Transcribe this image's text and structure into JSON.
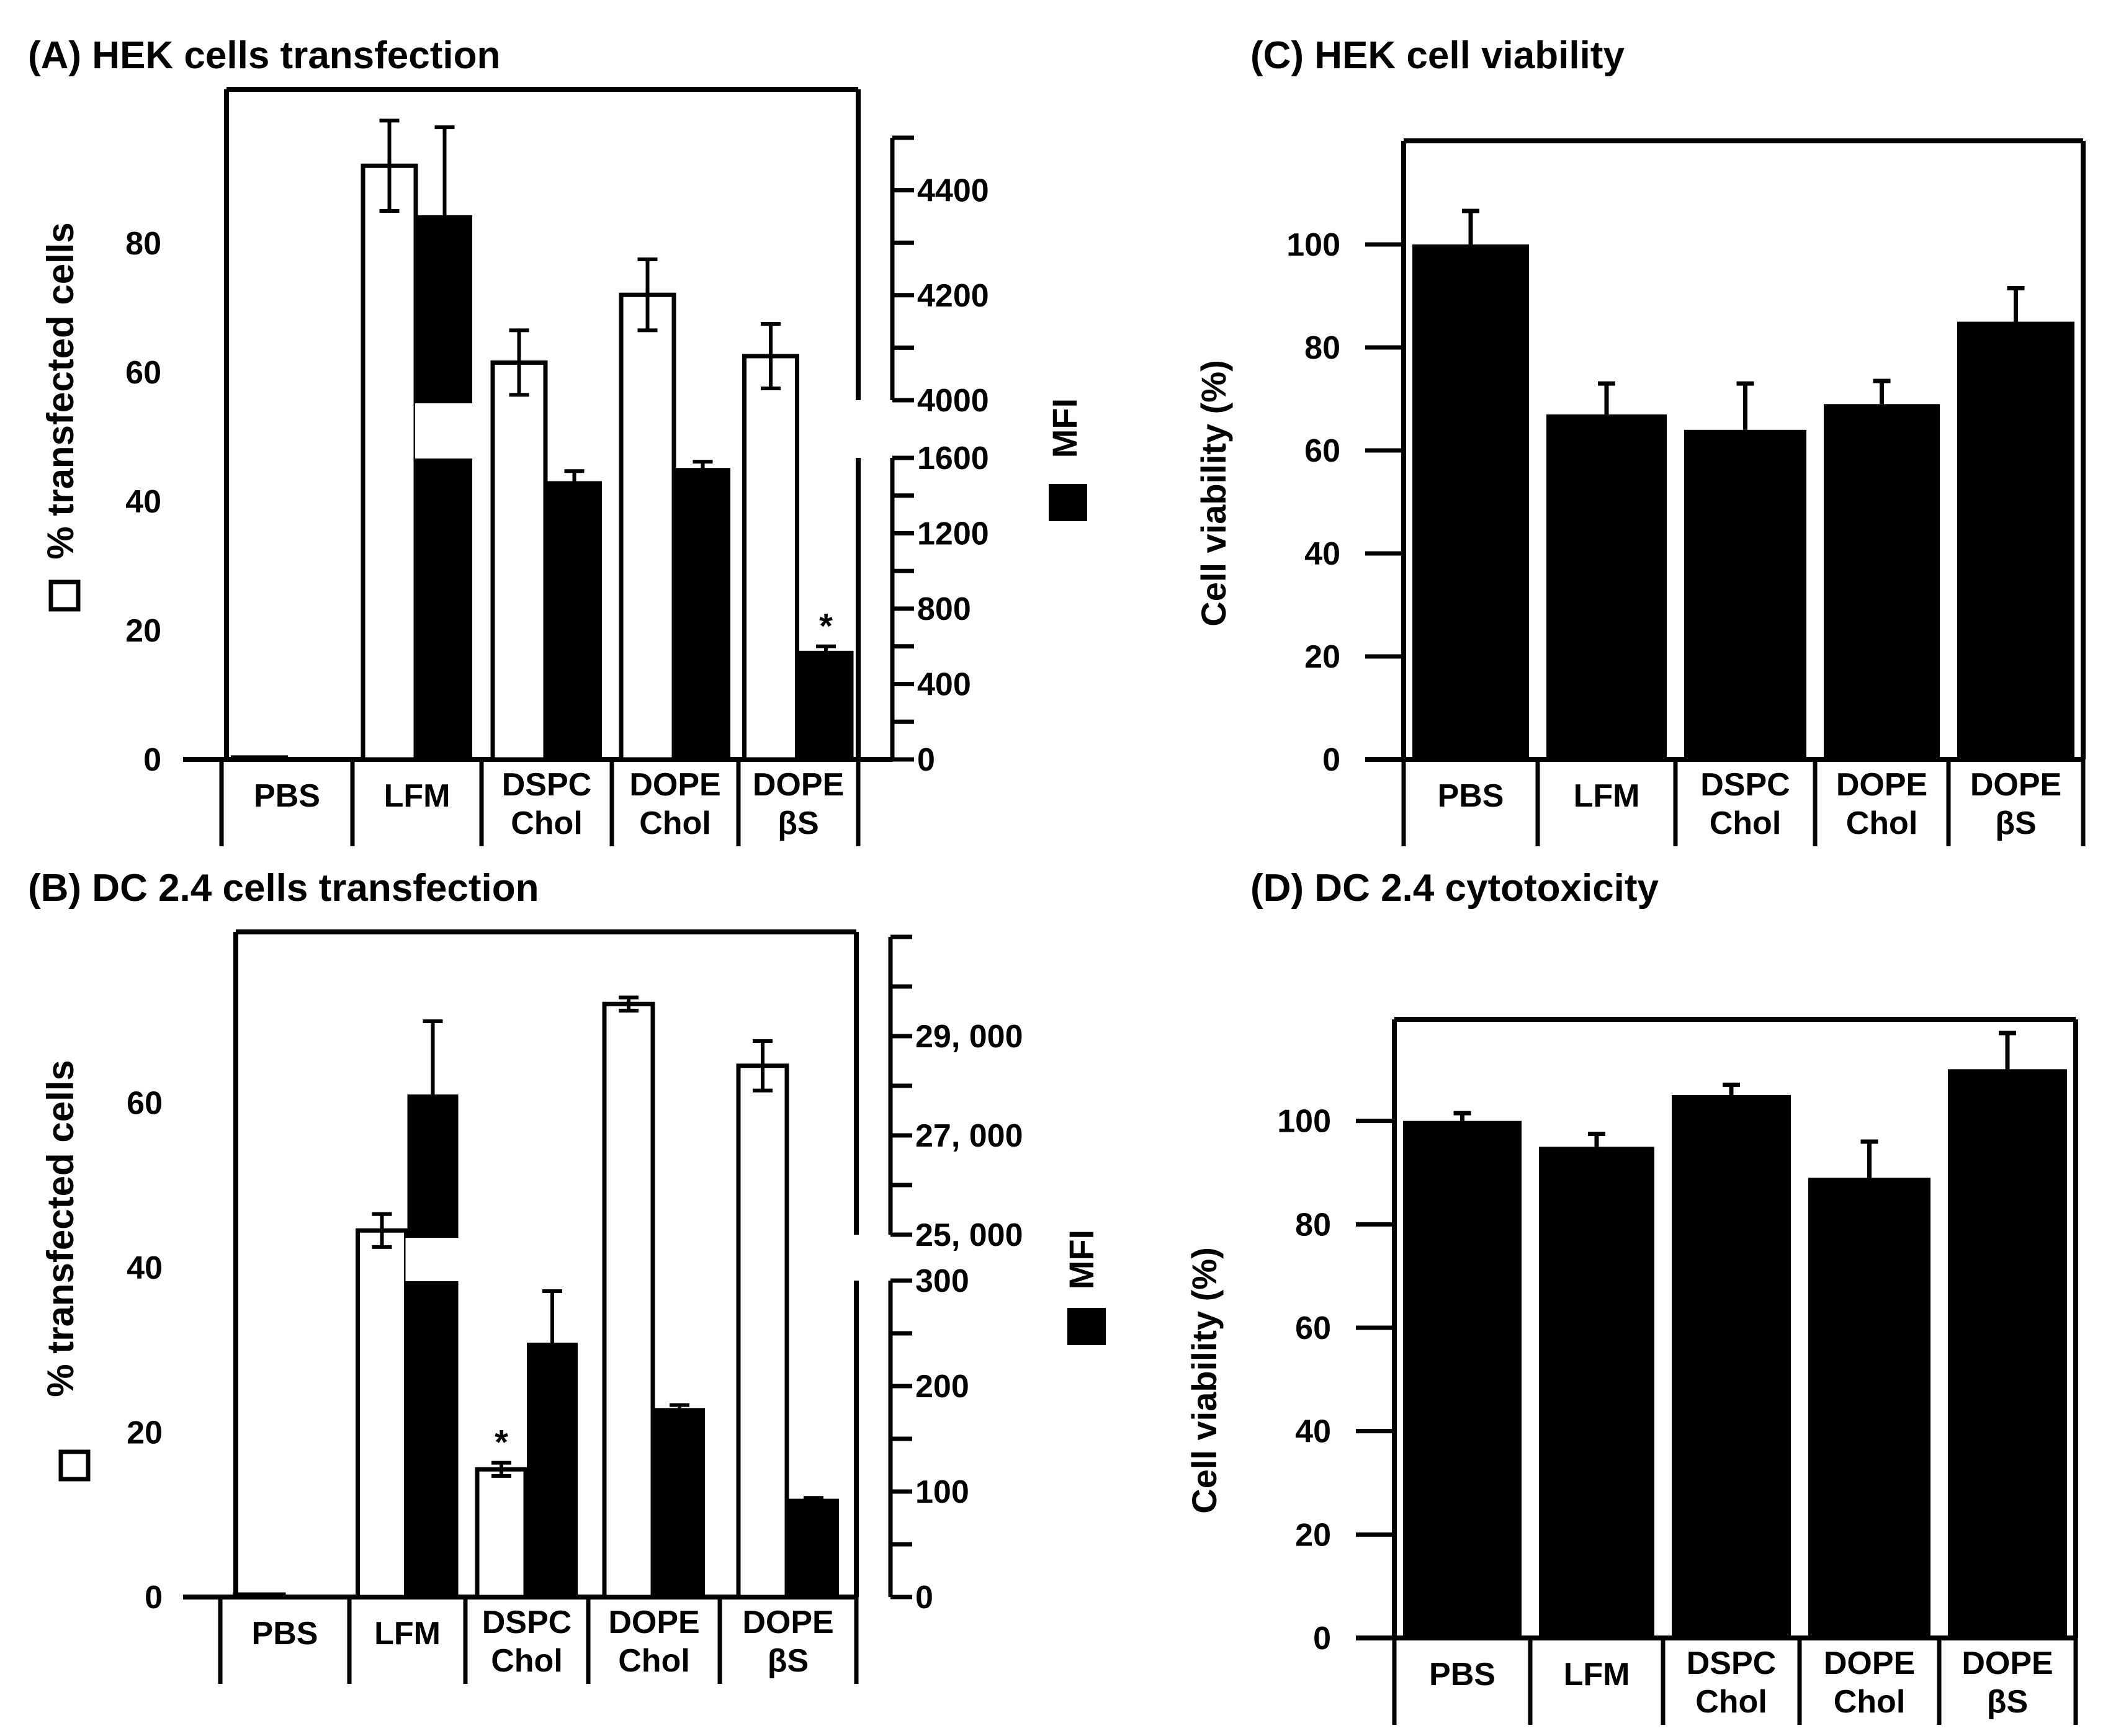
{
  "colors": {
    "ink": "#000000",
    "paper": "#ffffff"
  },
  "chart_data": [
    {
      "id": "A",
      "type": "bar",
      "title": "(A) HEK cells transfection",
      "categories": [
        [
          "PBS"
        ],
        [
          "LFM"
        ],
        [
          "DSPC",
          "Chol"
        ],
        [
          "DOPE",
          "Chol"
        ],
        [
          "DOPE",
          "βS"
        ]
      ],
      "ylabel_left": "% transfected cells",
      "ylabel_right": "MFI",
      "left_axis": {
        "ylim": [
          0,
          100
        ],
        "ticks": [
          0,
          20,
          40,
          60,
          80
        ]
      },
      "right_axis": {
        "broken": true,
        "lower": {
          "ylim": [
            0,
            1600
          ],
          "ticks": [
            0,
            400,
            800,
            1200,
            1600
          ]
        },
        "upper": {
          "ylim": [
            4000,
            4500
          ],
          "ticks": [
            4000,
            4200,
            4400
          ]
        }
      },
      "series": [
        {
          "name": "% transfected cells",
          "axis": "left",
          "style": "open",
          "values": [
            0.3,
            92,
            61.5,
            72,
            62.5
          ],
          "errors": [
            0,
            7,
            5,
            5.5,
            5
          ]
        },
        {
          "name": "MFI",
          "axis": "right",
          "style": "filled",
          "values": [
            0,
            4350,
            1470,
            1540,
            570
          ],
          "errors": [
            0,
            170,
            60,
            40,
            30
          ]
        }
      ],
      "annotations": [
        {
          "series": 1,
          "category": 4,
          "text": "*"
        }
      ]
    },
    {
      "id": "B",
      "type": "bar",
      "title": "(B) DC 2.4 cells transfection",
      "categories": [
        [
          "PBS"
        ],
        [
          "LFM"
        ],
        [
          "DSPC",
          "Chol"
        ],
        [
          "DOPE",
          "Chol"
        ],
        [
          "DOPE",
          "βS"
        ]
      ],
      "ylabel_left": "% transfected cells",
      "ylabel_right": "MFI",
      "left_axis": {
        "ylim": [
          0,
          80
        ],
        "ticks": [
          0,
          20,
          40,
          60
        ]
      },
      "right_axis": {
        "broken": true,
        "lower": {
          "ylim": [
            0,
            300
          ],
          "ticks": [
            0,
            100,
            200,
            300
          ]
        },
        "upper": {
          "ylim": [
            25000,
            31000
          ],
          "ticks": [
            "25, 000",
            "27, 000",
            "29, 000"
          ],
          "tick_values": [
            25000,
            27000,
            29000
          ]
        }
      },
      "series": [
        {
          "name": "% transfected cells",
          "axis": "left",
          "style": "open",
          "values": [
            0.3,
            44.5,
            15.5,
            72,
            64.5
          ],
          "errors": [
            0,
            2,
            0.8,
            0.8,
            3
          ]
        },
        {
          "name": "MFI",
          "axis": "right",
          "style": "filled",
          "values": [
            0,
            27800,
            240,
            178,
            92
          ],
          "errors": [
            0,
            1500,
            50,
            4,
            2
          ]
        }
      ],
      "annotations": [
        {
          "series": 0,
          "category": 2,
          "text": "*"
        }
      ]
    },
    {
      "id": "C",
      "type": "bar",
      "title": "(C) HEK cell viability",
      "categories": [
        [
          "PBS"
        ],
        [
          "LFM"
        ],
        [
          "DSPC",
          "Chol"
        ],
        [
          "DOPE",
          "Chol"
        ],
        [
          "DOPE",
          "βS"
        ]
      ],
      "ylabel": "Cell viability (%)",
      "ylim": [
        0,
        120
      ],
      "ticks": [
        0,
        20,
        40,
        60,
        80,
        100
      ],
      "series": [
        {
          "name": "Cell viability",
          "style": "filled",
          "values": [
            100,
            67,
            64,
            69,
            85
          ],
          "errors": [
            6.5,
            6,
            9,
            4.5,
            6.5
          ]
        }
      ]
    },
    {
      "id": "D",
      "type": "bar",
      "title": "(D) DC 2.4 cytotoxicity",
      "categories": [
        [
          "PBS"
        ],
        [
          "LFM"
        ],
        [
          "DSPC",
          "Chol"
        ],
        [
          "DOPE",
          "Chol"
        ],
        [
          "DOPE",
          "βS"
        ]
      ],
      "ylabel": "Cell viability (%)",
      "ylim": [
        0,
        120
      ],
      "ticks": [
        0,
        20,
        40,
        60,
        80,
        100
      ],
      "series": [
        {
          "name": "Cell viability",
          "style": "filled",
          "values": [
            100,
            95,
            105,
            89,
            110
          ],
          "errors": [
            1.5,
            2.5,
            2,
            7,
            7
          ]
        }
      ]
    }
  ]
}
